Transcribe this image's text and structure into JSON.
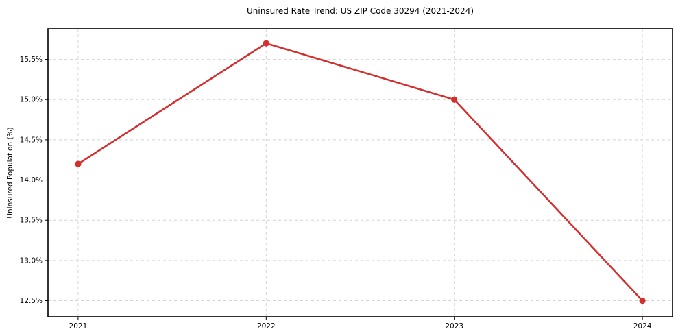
{
  "chart_data": {
    "type": "line",
    "title": "Uninsured Rate Trend: US ZIP Code 30294 (2021-2024)",
    "xlabel": "",
    "ylabel": "Uninsured Population (%)",
    "x": [
      2021,
      2022,
      2023,
      2024
    ],
    "x_tick_labels": [
      "2021",
      "2022",
      "2023",
      "2024"
    ],
    "series": [
      {
        "name": "Uninsured Population (%)",
        "values": [
          14.2,
          15.7,
          15.0,
          12.5
        ]
      }
    ],
    "y_ticks": [
      12.5,
      13.0,
      13.5,
      14.0,
      14.5,
      15.0,
      15.5
    ],
    "y_tick_labels": [
      "12.5%",
      "13.0%",
      "13.5%",
      "14.0%",
      "14.5%",
      "15.0%",
      "15.5%"
    ],
    "xlim": [
      2020.84,
      2024.16
    ],
    "ylim": [
      12.3,
      15.88
    ],
    "grid": true,
    "grid_style": "dashed",
    "legend": false,
    "colors": {
      "line": "#d32f2f",
      "marker": "#d32f2f",
      "grid": "#d4d4d4",
      "spine": "#000000",
      "background": "#ffffff",
      "text": "#000000"
    }
  }
}
